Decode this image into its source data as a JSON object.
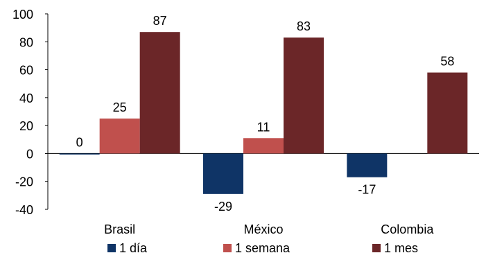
{
  "chart_data": {
    "type": "bar",
    "categories": [
      "Brasil",
      "México",
      "Colombia"
    ],
    "series": [
      {
        "name": "1 día",
        "color": "#0f3466",
        "values": [
          0,
          -29,
          -17
        ]
      },
      {
        "name": "1 semana",
        "color": "#c0504d",
        "values": [
          25,
          11,
          null
        ]
      },
      {
        "name": "1 mes",
        "color": "#6b2628",
        "values": [
          87,
          83,
          58
        ]
      }
    ],
    "data_labels": [
      [
        "0",
        "-29",
        "-17"
      ],
      [
        "25",
        "11",
        ""
      ],
      [
        "87",
        "83",
        "58"
      ]
    ],
    "ylim": [
      -40,
      100
    ],
    "yticks": [
      -40,
      -20,
      0,
      20,
      40,
      60,
      80,
      100
    ],
    "ytick_labels": [
      "-40",
      "-20",
      "0",
      "20",
      "40",
      "60",
      "80",
      "100"
    ],
    "grid": false,
    "legend_position": "bottom"
  }
}
